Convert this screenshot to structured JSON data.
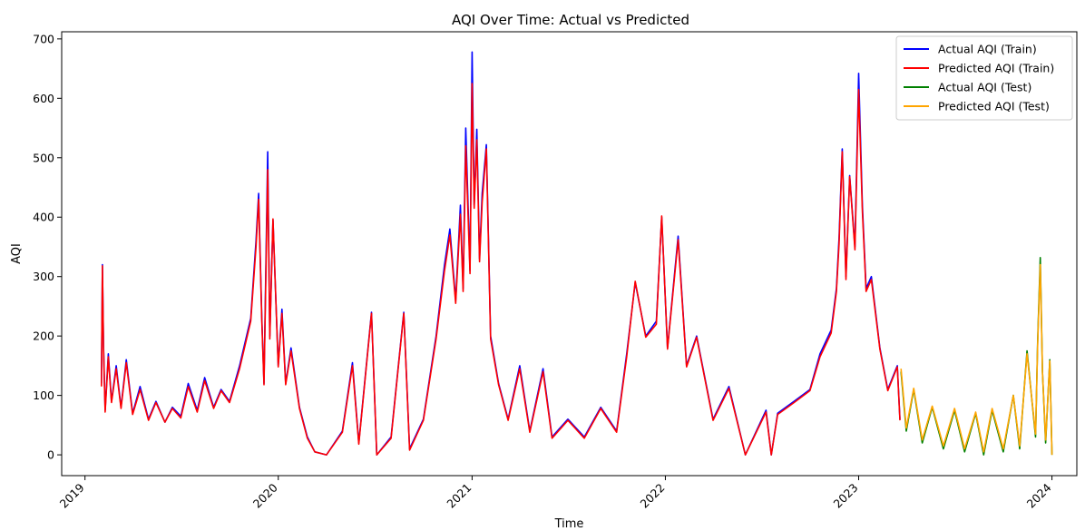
{
  "chart_data": {
    "type": "line",
    "title": "AQI Over Time: Actual vs Predicted",
    "xlabel": "Time",
    "ylabel": "AQI",
    "x_range": [
      "2018-11-18",
      "2024-02-17"
    ],
    "ylim": [
      -35,
      712
    ],
    "grid": false,
    "legend_position": "top-right",
    "x_ticks": [
      {
        "value": "2019-01-01",
        "label": "2019"
      },
      {
        "value": "2020-01-01",
        "label": "2020"
      },
      {
        "value": "2021-01-01",
        "label": "2021"
      },
      {
        "value": "2022-01-01",
        "label": "2022"
      },
      {
        "value": "2023-01-01",
        "label": "2023"
      },
      {
        "value": "2024-01-01",
        "label": "2024"
      }
    ],
    "y_ticks": [
      0,
      100,
      200,
      300,
      400,
      500,
      600,
      700
    ],
    "series": [
      {
        "name": "Actual AQI (Train)",
        "color": "#0000ff",
        "values": [
          [
            "2019-02-01",
            120
          ],
          [
            "2019-02-03",
            320
          ],
          [
            "2019-02-05",
            185
          ],
          [
            "2019-02-08",
            75
          ],
          [
            "2019-02-14",
            170
          ],
          [
            "2019-02-20",
            90
          ],
          [
            "2019-03-01",
            150
          ],
          [
            "2019-03-10",
            80
          ],
          [
            "2019-03-20",
            160
          ],
          [
            "2019-04-01",
            70
          ],
          [
            "2019-04-15",
            115
          ],
          [
            "2019-05-01",
            60
          ],
          [
            "2019-05-15",
            90
          ],
          [
            "2019-06-01",
            55
          ],
          [
            "2019-06-15",
            80
          ],
          [
            "2019-07-01",
            65
          ],
          [
            "2019-07-15",
            120
          ],
          [
            "2019-08-01",
            75
          ],
          [
            "2019-08-15",
            130
          ],
          [
            "2019-09-01",
            80
          ],
          [
            "2019-09-15",
            110
          ],
          [
            "2019-10-01",
            90
          ],
          [
            "2019-10-20",
            150
          ],
          [
            "2019-11-10",
            230
          ],
          [
            "2019-11-20",
            360
          ],
          [
            "2019-11-25",
            440
          ],
          [
            "2019-12-01",
            230
          ],
          [
            "2019-12-05",
            120
          ],
          [
            "2019-12-12",
            510
          ],
          [
            "2019-12-16",
            200
          ],
          [
            "2019-12-22",
            395
          ],
          [
            "2020-01-01",
            150
          ],
          [
            "2020-01-08",
            245
          ],
          [
            "2020-01-15",
            120
          ],
          [
            "2020-01-25",
            180
          ],
          [
            "2020-02-10",
            80
          ],
          [
            "2020-02-25",
            30
          ],
          [
            "2020-03-10",
            5
          ],
          [
            "2020-04-01",
            0
          ],
          [
            "2020-05-01",
            40
          ],
          [
            "2020-05-20",
            155
          ],
          [
            "2020-06-01",
            20
          ],
          [
            "2020-06-25",
            240
          ],
          [
            "2020-07-05",
            0
          ],
          [
            "2020-08-01",
            30
          ],
          [
            "2020-08-25",
            240
          ],
          [
            "2020-09-05",
            10
          ],
          [
            "2020-10-01",
            60
          ],
          [
            "2020-10-25",
            200
          ],
          [
            "2020-11-10",
            320
          ],
          [
            "2020-11-20",
            380
          ],
          [
            "2020-12-01",
            260
          ],
          [
            "2020-12-10",
            420
          ],
          [
            "2020-12-15",
            280
          ],
          [
            "2020-12-20",
            550
          ],
          [
            "2020-12-28",
            310
          ],
          [
            "2021-01-01",
            678
          ],
          [
            "2021-01-05",
            420
          ],
          [
            "2021-01-10",
            548
          ],
          [
            "2021-01-15",
            330
          ],
          [
            "2021-01-20",
            440
          ],
          [
            "2021-01-28",
            522
          ],
          [
            "2021-02-05",
            200
          ],
          [
            "2021-02-20",
            120
          ],
          [
            "2021-03-10",
            60
          ],
          [
            "2021-04-01",
            150
          ],
          [
            "2021-04-20",
            40
          ],
          [
            "2021-05-15",
            145
          ],
          [
            "2021-06-01",
            30
          ],
          [
            "2021-07-01",
            60
          ],
          [
            "2021-08-01",
            30
          ],
          [
            "2021-09-01",
            80
          ],
          [
            "2021-10-01",
            40
          ],
          [
            "2021-10-20",
            170
          ],
          [
            "2021-11-05",
            290
          ],
          [
            "2021-11-25",
            200
          ],
          [
            "2021-12-15",
            225
          ],
          [
            "2021-12-25",
            400
          ],
          [
            "2022-01-05",
            180
          ],
          [
            "2022-01-25",
            368
          ],
          [
            "2022-02-10",
            150
          ],
          [
            "2022-03-01",
            200
          ],
          [
            "2022-04-01",
            60
          ],
          [
            "2022-05-01",
            115
          ],
          [
            "2022-06-01",
            0
          ],
          [
            "2022-07-10",
            75
          ],
          [
            "2022-07-20",
            0
          ],
          [
            "2022-08-01",
            70
          ],
          [
            "2022-09-01",
            90
          ],
          [
            "2022-10-01",
            110
          ],
          [
            "2022-10-20",
            170
          ],
          [
            "2022-11-10",
            210
          ],
          [
            "2022-11-20",
            280
          ],
          [
            "2022-11-25",
            365
          ],
          [
            "2022-12-01",
            515
          ],
          [
            "2022-12-08",
            300
          ],
          [
            "2022-12-15",
            470
          ],
          [
            "2022-12-25",
            350
          ],
          [
            "2023-01-01",
            642
          ],
          [
            "2023-01-08",
            420
          ],
          [
            "2023-01-15",
            280
          ],
          [
            "2023-01-25",
            300
          ],
          [
            "2023-02-10",
            180
          ],
          [
            "2023-02-25",
            110
          ],
          [
            "2023-03-15",
            150
          ],
          [
            "2023-03-20",
            60
          ]
        ]
      },
      {
        "name": "Predicted AQI (Train)",
        "color": "#ff0000",
        "values": [
          [
            "2019-02-01",
            115
          ],
          [
            "2019-02-03",
            318
          ],
          [
            "2019-02-05",
            180
          ],
          [
            "2019-02-08",
            72
          ],
          [
            "2019-02-14",
            165
          ],
          [
            "2019-02-20",
            88
          ],
          [
            "2019-03-01",
            145
          ],
          [
            "2019-03-10",
            78
          ],
          [
            "2019-03-20",
            155
          ],
          [
            "2019-04-01",
            68
          ],
          [
            "2019-04-15",
            110
          ],
          [
            "2019-05-01",
            58
          ],
          [
            "2019-05-15",
            88
          ],
          [
            "2019-06-01",
            55
          ],
          [
            "2019-06-15",
            78
          ],
          [
            "2019-07-01",
            62
          ],
          [
            "2019-07-15",
            115
          ],
          [
            "2019-08-01",
            72
          ],
          [
            "2019-08-15",
            125
          ],
          [
            "2019-09-01",
            78
          ],
          [
            "2019-09-15",
            108
          ],
          [
            "2019-10-01",
            88
          ],
          [
            "2019-10-20",
            145
          ],
          [
            "2019-11-10",
            225
          ],
          [
            "2019-11-20",
            350
          ],
          [
            "2019-11-25",
            430
          ],
          [
            "2019-12-01",
            225
          ],
          [
            "2019-12-05",
            118
          ],
          [
            "2019-12-12",
            480
          ],
          [
            "2019-12-16",
            195
          ],
          [
            "2019-12-22",
            397
          ],
          [
            "2020-01-01",
            148
          ],
          [
            "2020-01-08",
            238
          ],
          [
            "2020-01-15",
            118
          ],
          [
            "2020-01-25",
            175
          ],
          [
            "2020-02-10",
            78
          ],
          [
            "2020-02-25",
            28
          ],
          [
            "2020-03-10",
            5
          ],
          [
            "2020-04-01",
            0
          ],
          [
            "2020-05-01",
            38
          ],
          [
            "2020-05-20",
            150
          ],
          [
            "2020-06-01",
            18
          ],
          [
            "2020-06-25",
            238
          ],
          [
            "2020-07-05",
            0
          ],
          [
            "2020-08-01",
            28
          ],
          [
            "2020-08-25",
            238
          ],
          [
            "2020-09-05",
            8
          ],
          [
            "2020-10-01",
            58
          ],
          [
            "2020-10-25",
            195
          ],
          [
            "2020-11-10",
            310
          ],
          [
            "2020-11-20",
            370
          ],
          [
            "2020-12-01",
            255
          ],
          [
            "2020-12-10",
            405
          ],
          [
            "2020-12-15",
            275
          ],
          [
            "2020-12-20",
            520
          ],
          [
            "2020-12-28",
            305
          ],
          [
            "2021-01-01",
            625
          ],
          [
            "2021-01-05",
            415
          ],
          [
            "2021-01-10",
            530
          ],
          [
            "2021-01-15",
            325
          ],
          [
            "2021-01-20",
            425
          ],
          [
            "2021-01-28",
            515
          ],
          [
            "2021-02-05",
            195
          ],
          [
            "2021-02-20",
            118
          ],
          [
            "2021-03-10",
            58
          ],
          [
            "2021-04-01",
            145
          ],
          [
            "2021-04-20",
            38
          ],
          [
            "2021-05-15",
            140
          ],
          [
            "2021-06-01",
            28
          ],
          [
            "2021-07-01",
            58
          ],
          [
            "2021-08-01",
            28
          ],
          [
            "2021-09-01",
            78
          ],
          [
            "2021-10-01",
            38
          ],
          [
            "2021-10-20",
            165
          ],
          [
            "2021-11-05",
            292
          ],
          [
            "2021-11-25",
            198
          ],
          [
            "2021-12-15",
            220
          ],
          [
            "2021-12-25",
            402
          ],
          [
            "2022-01-05",
            178
          ],
          [
            "2022-01-25",
            362
          ],
          [
            "2022-02-10",
            148
          ],
          [
            "2022-03-01",
            198
          ],
          [
            "2022-04-01",
            58
          ],
          [
            "2022-05-01",
            112
          ],
          [
            "2022-06-01",
            0
          ],
          [
            "2022-07-10",
            72
          ],
          [
            "2022-07-20",
            0
          ],
          [
            "2022-08-01",
            68
          ],
          [
            "2022-09-01",
            88
          ],
          [
            "2022-10-01",
            108
          ],
          [
            "2022-10-20",
            165
          ],
          [
            "2022-11-10",
            205
          ],
          [
            "2022-11-20",
            275
          ],
          [
            "2022-11-25",
            355
          ],
          [
            "2022-12-01",
            510
          ],
          [
            "2022-12-08",
            295
          ],
          [
            "2022-12-15",
            468
          ],
          [
            "2022-12-25",
            345
          ],
          [
            "2023-01-01",
            615
          ],
          [
            "2023-01-08",
            410
          ],
          [
            "2023-01-15",
            275
          ],
          [
            "2023-01-25",
            295
          ],
          [
            "2023-02-10",
            178
          ],
          [
            "2023-02-25",
            108
          ],
          [
            "2023-03-15",
            148
          ],
          [
            "2023-03-20",
            58
          ]
        ]
      },
      {
        "name": "Actual AQI (Test)",
        "color": "#008000",
        "values": [
          [
            "2023-03-22",
            140
          ],
          [
            "2023-04-01",
            40
          ],
          [
            "2023-04-15",
            110
          ],
          [
            "2023-05-01",
            20
          ],
          [
            "2023-05-20",
            80
          ],
          [
            "2023-06-10",
            10
          ],
          [
            "2023-07-01",
            75
          ],
          [
            "2023-07-20",
            5
          ],
          [
            "2023-08-10",
            70
          ],
          [
            "2023-08-25",
            0
          ],
          [
            "2023-09-10",
            75
          ],
          [
            "2023-10-01",
            5
          ],
          [
            "2023-10-20",
            100
          ],
          [
            "2023-11-01",
            10
          ],
          [
            "2023-11-15",
            175
          ],
          [
            "2023-12-01",
            30
          ],
          [
            "2023-12-05",
            190
          ],
          [
            "2023-12-10",
            332
          ],
          [
            "2023-12-14",
            140
          ],
          [
            "2023-12-20",
            20
          ],
          [
            "2023-12-28",
            160
          ],
          [
            "2024-01-01",
            0
          ]
        ]
      },
      {
        "name": "Predicted AQI (Test)",
        "color": "#ffa500",
        "values": [
          [
            "2023-03-22",
            145
          ],
          [
            "2023-04-01",
            45
          ],
          [
            "2023-04-15",
            112
          ],
          [
            "2023-05-01",
            25
          ],
          [
            "2023-05-20",
            82
          ],
          [
            "2023-06-10",
            15
          ],
          [
            "2023-07-01",
            78
          ],
          [
            "2023-07-20",
            10
          ],
          [
            "2023-08-10",
            72
          ],
          [
            "2023-08-25",
            5
          ],
          [
            "2023-09-10",
            78
          ],
          [
            "2023-10-01",
            10
          ],
          [
            "2023-10-20",
            100
          ],
          [
            "2023-11-01",
            15
          ],
          [
            "2023-11-15",
            170
          ],
          [
            "2023-12-01",
            35
          ],
          [
            "2023-12-05",
            185
          ],
          [
            "2023-12-10",
            320
          ],
          [
            "2023-12-14",
            140
          ],
          [
            "2023-12-20",
            25
          ],
          [
            "2023-12-28",
            158
          ],
          [
            "2024-01-01",
            0
          ]
        ]
      }
    ]
  }
}
